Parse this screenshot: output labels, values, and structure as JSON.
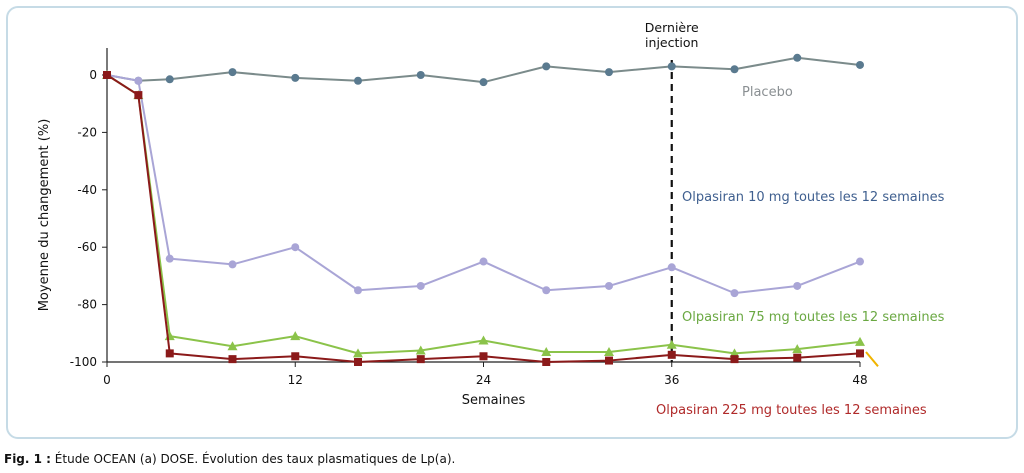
{
  "chart_data": {
    "type": "line",
    "xlabel": "Semaines",
    "ylabel": "Moyenne du changement (%)",
    "xlim": [
      0,
      48
    ],
    "ylim": [
      -100,
      10
    ],
    "xticks": [
      0,
      12,
      24,
      36,
      48
    ],
    "yticks": [
      0,
      -20,
      -40,
      -60,
      -80,
      -100
    ],
    "grid": false,
    "reference_line": {
      "x": 36,
      "label_lines": [
        "Dernière",
        "injection"
      ],
      "style": "dashed"
    },
    "series": [
      {
        "name": "Placebo",
        "color": "#7b8b8b",
        "marker": "circle",
        "marker_color": "#5a7a8f",
        "label_color": "#8a8f92",
        "points": [
          [
            0,
            0
          ],
          [
            2,
            -2
          ],
          [
            4,
            -1.5
          ],
          [
            8,
            1
          ],
          [
            12,
            -1
          ],
          [
            16,
            -2
          ],
          [
            20,
            0
          ],
          [
            24,
            -2.5
          ],
          [
            28,
            3
          ],
          [
            32,
            1
          ],
          [
            36,
            3
          ],
          [
            40,
            2
          ],
          [
            44,
            6
          ],
          [
            48,
            3.5
          ]
        ]
      },
      {
        "name": "Olpasiran 10 mg toutes les 12 semaines",
        "color": "#a9a5d6",
        "marker": "circle",
        "marker_color": "#a9a5d6",
        "label_color": "#3f5f8f",
        "points": [
          [
            0,
            0
          ],
          [
            2,
            -2
          ],
          [
            4,
            -64
          ],
          [
            8,
            -66
          ],
          [
            12,
            -60
          ],
          [
            16,
            -75
          ],
          [
            20,
            -73.5
          ],
          [
            24,
            -65
          ],
          [
            28,
            -75
          ],
          [
            32,
            -73.5
          ],
          [
            36,
            -67
          ],
          [
            40,
            -76
          ],
          [
            44,
            -73.5
          ],
          [
            48,
            -65
          ]
        ]
      },
      {
        "name": "Olpasiran 75 mg toutes les 12 semaines",
        "color": "#8bc34a",
        "marker": "triangle",
        "marker_color": "#8bc34a",
        "label_color": "#6aa842",
        "points": [
          [
            0,
            0
          ],
          [
            2,
            -7
          ],
          [
            4,
            -91
          ],
          [
            8,
            -94.5
          ],
          [
            12,
            -91
          ],
          [
            16,
            -97
          ],
          [
            20,
            -96
          ],
          [
            24,
            -92.5
          ],
          [
            28,
            -96.5
          ],
          [
            32,
            -96.5
          ],
          [
            36,
            -94
          ],
          [
            40,
            -97
          ],
          [
            44,
            -95.5
          ],
          [
            48,
            -93
          ]
        ]
      },
      {
        "name": "Olpasiran 225 mg toutes les 12 semaines",
        "color": "#8b1a1a",
        "marker": "square",
        "marker_color": "#8b1a1a",
        "label_color": "#b02a2a",
        "points": [
          [
            0,
            0
          ],
          [
            2,
            -7
          ],
          [
            4,
            -97
          ],
          [
            8,
            -99
          ],
          [
            12,
            -98
          ],
          [
            16,
            -100
          ],
          [
            20,
            -99
          ],
          [
            24,
            -98
          ],
          [
            28,
            -100
          ],
          [
            32,
            -99.5
          ],
          [
            36,
            -97.5
          ],
          [
            40,
            -99
          ],
          [
            44,
            -98.5
          ],
          [
            48,
            -97
          ]
        ]
      }
    ]
  },
  "caption": {
    "label": "Fig. 1 :",
    "text": "Étude OCEAN (a) DOSE. Évolution des taux plasmatiques de Lp(a)."
  }
}
